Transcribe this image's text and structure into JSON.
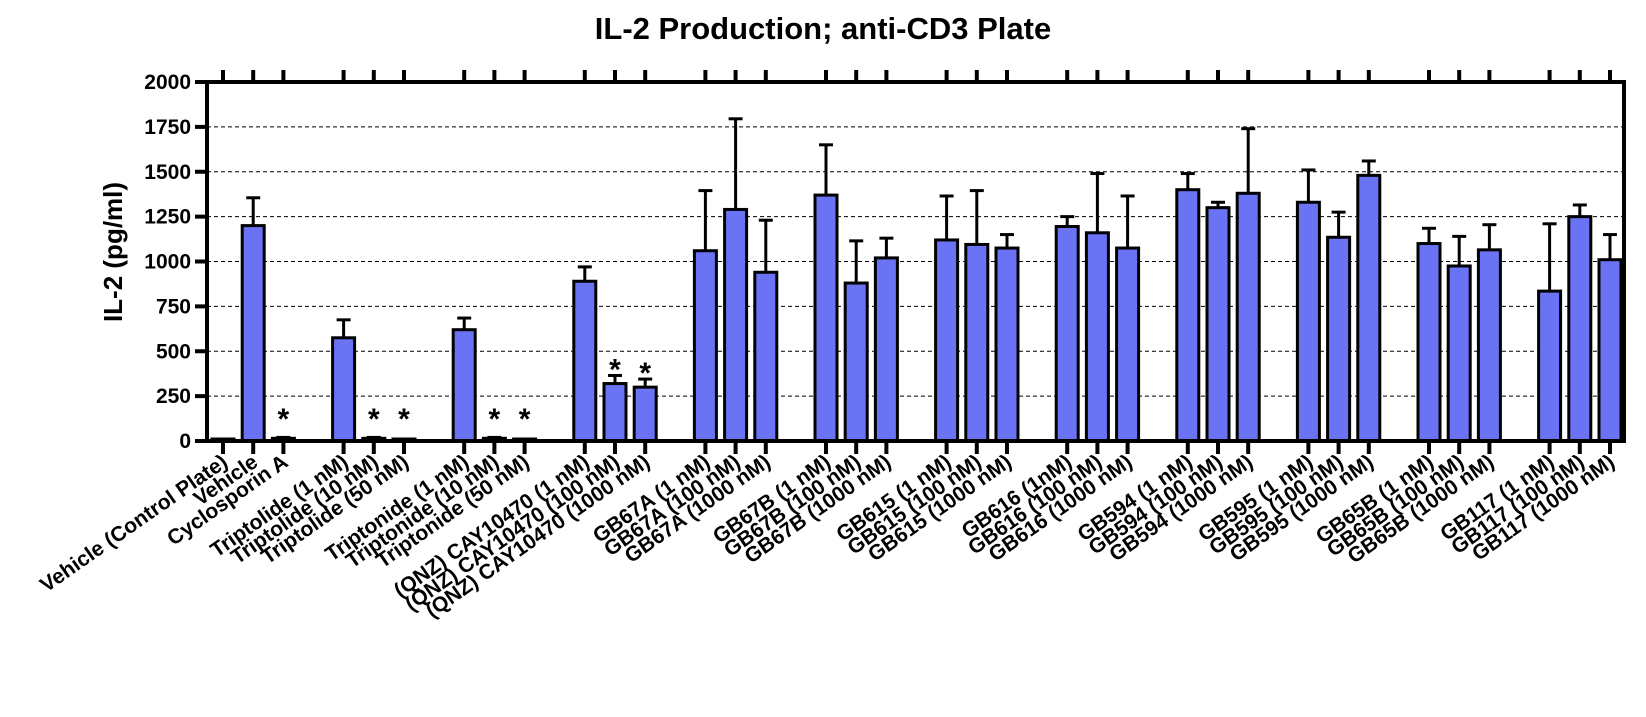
{
  "chart_data": {
    "type": "bar",
    "title": "IL-2 Production; anti-CD3 Plate",
    "xlabel": "",
    "ylabel": "IL-2 (pg/ml)",
    "ylim": [
      0,
      2000
    ],
    "yticks": [
      0,
      250,
      500,
      750,
      1000,
      1250,
      1500,
      1750,
      2000
    ],
    "grid": "horizontal dashed",
    "bar_color": "#6b73f5",
    "error_bars": "upper, standard deviation",
    "categories": [
      "Vehicle (Control Plate)",
      "Vehicle",
      "Cyclosporin A",
      "Triptolide (1 nM)",
      "Triptolide (10 nM)",
      "Triptolide (50 nM)",
      "Triptonide (1 nM)",
      "Triptonide (10 nM)",
      "Triptonide (50 nM)",
      "(QNZ) CAY10470 (1 nM)",
      "(QNZ) CAY10470 (100 nM)",
      "(QNZ) CAY10470 (1000 nM)",
      "GB67A (1 nM)",
      "GB67A (100 nM)",
      "GB67A (1000 nM)",
      "GB67B (1 nM)",
      "GB67B (100 nM)",
      "GB67B (1000 nM)",
      "GB615 (1 nM)",
      "GB615 (100 nM)",
      "GB615 (1000 nM)",
      "GB616 (1nM)",
      "GB616 (100 nM)",
      "GB616 (1000 nM)",
      "GB594 (1 nM)",
      "GB594 (100 nM)",
      "GB594 (1000 nM)",
      "GB595 (1 nM)",
      "GB595 (100 nM)",
      "GB595 (1000 nM)",
      "GB65B (1 nM)",
      "GB65B (100 nM)",
      "GB65B (1000 nM)",
      "GB117 (1 nM)",
      "GB117 (100 nM)",
      "GB117 (1000 nM)"
    ],
    "values": [
      0,
      1200,
      15,
      575,
      15,
      0,
      620,
      15,
      0,
      890,
      320,
      300,
      1060,
      1290,
      940,
      1370,
      880,
      1020,
      1120,
      1095,
      1075,
      1195,
      1160,
      1075,
      1400,
      1300,
      1380,
      1330,
      1135,
      1480,
      1100,
      975,
      1065,
      835,
      1250,
      1010
    ],
    "errors": [
      0,
      155,
      5,
      100,
      5,
      0,
      65,
      5,
      0,
      80,
      45,
      45,
      335,
      505,
      290,
      280,
      235,
      110,
      245,
      300,
      75,
      55,
      330,
      290,
      90,
      30,
      360,
      180,
      140,
      80,
      85,
      165,
      140,
      375,
      65,
      140
    ],
    "significance": [
      "",
      "",
      "*",
      "",
      "*",
      "*",
      "",
      "*",
      "*",
      "",
      "*",
      "*",
      "",
      "",
      "",
      "",
      "",
      "",
      "",
      "",
      "",
      "",
      "",
      "",
      "",
      "",
      "",
      "",
      "",
      "",
      "",
      "",
      "",
      "",
      "",
      ""
    ]
  }
}
